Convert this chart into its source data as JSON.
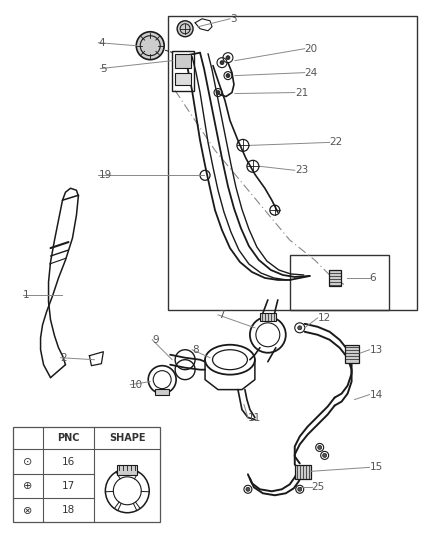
{
  "bg_color": "#ffffff",
  "line_color": "#1a1a1a",
  "gray_line": "#888888",
  "fig_width": 4.38,
  "fig_height": 5.33,
  "dpi": 100,
  "label_fontsize": 7.5,
  "label_color": "#555555"
}
